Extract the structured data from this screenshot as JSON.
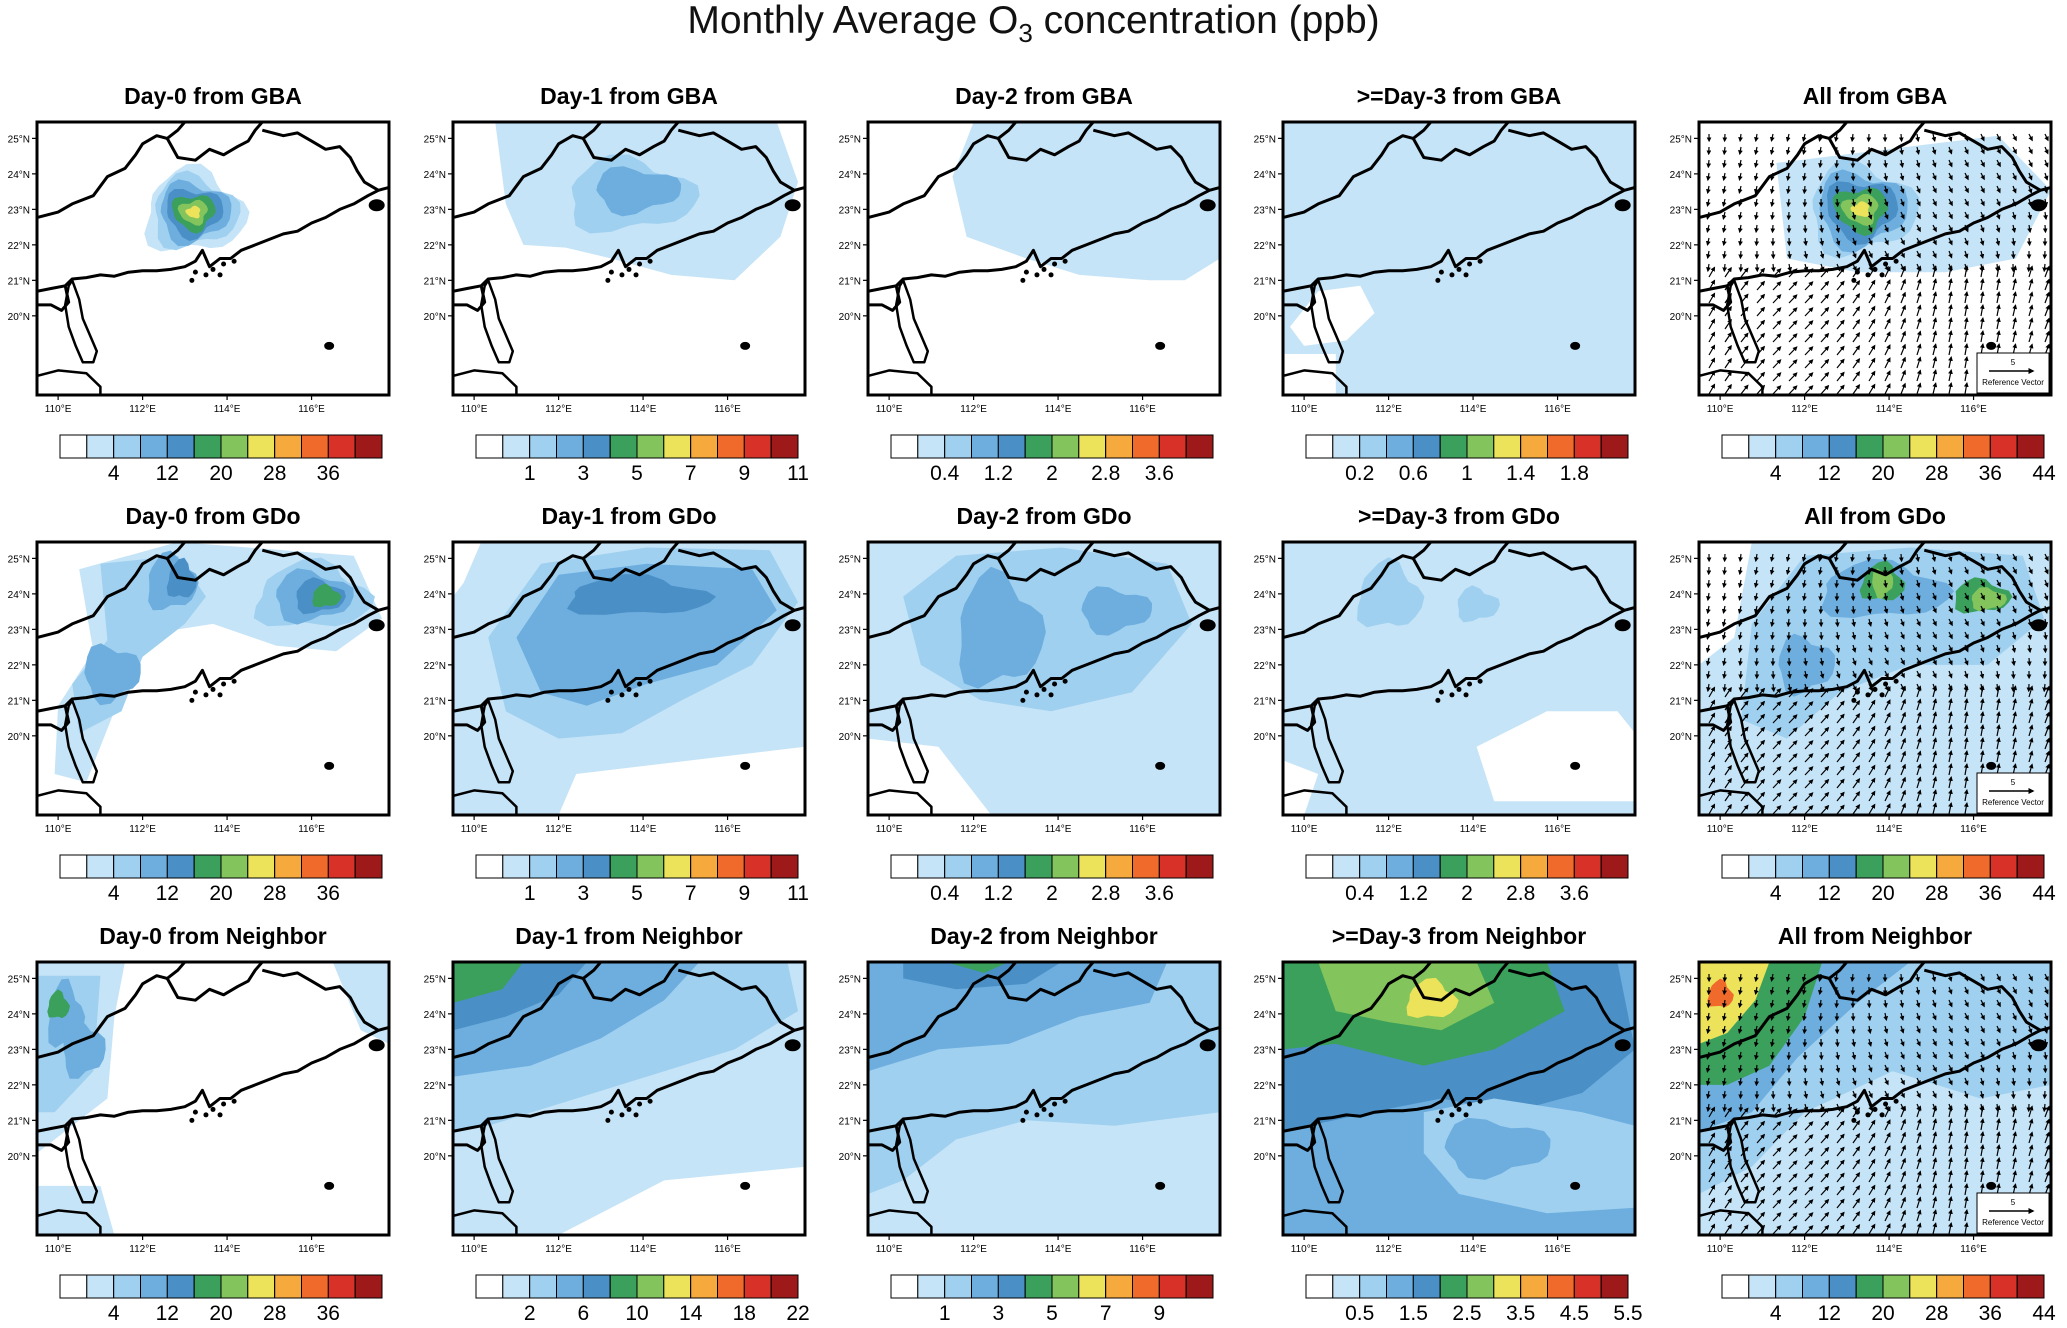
{
  "figure": {
    "title_prefix": "Monthly Average O",
    "title_sub": "3",
    "title_suffix": " concentration (ppb)"
  },
  "palette": [
    "#ffffff",
    "#c6e4f7",
    "#9fd0f0",
    "#6daedf",
    "#4a8fc6",
    "#3aa05c",
    "#84c45c",
    "#ece35a",
    "#f6a93c",
    "#ef6a2b",
    "#d83128",
    "#9e1a1a"
  ],
  "lon_ticks": [
    "110°E",
    "112°E",
    "114°E",
    "116°E"
  ],
  "lat_ticks": [
    "25°N",
    "24°N",
    "23°N",
    "22°N",
    "21°N",
    "20°N"
  ],
  "reference_vector": {
    "value": "5",
    "label": "Reference Vector"
  },
  "panels": [
    {
      "title": "Day-0 from GBA",
      "colorbar_labels": [
        "4",
        "12",
        "20",
        "28",
        "36"
      ],
      "vectors": false,
      "pattern": "gba_day0"
    },
    {
      "title": "Day-1 from GBA",
      "colorbar_labels": [
        "1",
        "3",
        "5",
        "7",
        "9",
        "11"
      ],
      "vectors": false,
      "pattern": "gba_day1"
    },
    {
      "title": "Day-2 from GBA",
      "colorbar_labels": [
        "0.4",
        "1.2",
        "2",
        "2.8",
        "3.6"
      ],
      "vectors": false,
      "pattern": "gba_day2"
    },
    {
      "title": ">=Day-3 from GBA",
      "colorbar_labels": [
        "0.2",
        "0.6",
        "1",
        "1.4",
        "1.8"
      ],
      "vectors": false,
      "pattern": "gba_day3"
    },
    {
      "title": "All from GBA",
      "colorbar_labels": [
        "4",
        "12",
        "20",
        "28",
        "36",
        "44"
      ],
      "vectors": true,
      "pattern": "gba_all"
    },
    {
      "title": "Day-0 from GDo",
      "colorbar_labels": [
        "4",
        "12",
        "20",
        "28",
        "36"
      ],
      "vectors": false,
      "pattern": "gdo_day0"
    },
    {
      "title": "Day-1 from GDo",
      "colorbar_labels": [
        "1",
        "3",
        "5",
        "7",
        "9",
        "11"
      ],
      "vectors": false,
      "pattern": "gdo_day1"
    },
    {
      "title": "Day-2 from GDo",
      "colorbar_labels": [
        "0.4",
        "1.2",
        "2",
        "2.8",
        "3.6"
      ],
      "vectors": false,
      "pattern": "gdo_day2"
    },
    {
      "title": ">=Day-3 from GDo",
      "colorbar_labels": [
        "0.4",
        "1.2",
        "2",
        "2.8",
        "3.6"
      ],
      "vectors": false,
      "pattern": "gdo_day3"
    },
    {
      "title": "All from GDo",
      "colorbar_labels": [
        "4",
        "12",
        "20",
        "28",
        "36",
        "44"
      ],
      "vectors": true,
      "pattern": "gdo_all"
    },
    {
      "title": "Day-0 from Neighbor",
      "colorbar_labels": [
        "4",
        "12",
        "20",
        "28",
        "36"
      ],
      "vectors": false,
      "pattern": "nb_day0"
    },
    {
      "title": "Day-1 from Neighbor",
      "colorbar_labels": [
        "2",
        "6",
        "10",
        "14",
        "18",
        "22"
      ],
      "vectors": false,
      "pattern": "nb_day1"
    },
    {
      "title": "Day-2 from Neighbor",
      "colorbar_labels": [
        "1",
        "3",
        "5",
        "7",
        "9"
      ],
      "vectors": false,
      "pattern": "nb_day2"
    },
    {
      "title": ">=Day-3 from Neighbor",
      "colorbar_labels": [
        "0.5",
        "1.5",
        "2.5",
        "3.5",
        "4.5",
        "5.5"
      ],
      "vectors": false,
      "pattern": "nb_day3"
    },
    {
      "title": "All from Neighbor",
      "colorbar_labels": [
        "4",
        "12",
        "20",
        "28",
        "36",
        "44"
      ],
      "vectors": true,
      "pattern": "nb_all"
    }
  ]
}
